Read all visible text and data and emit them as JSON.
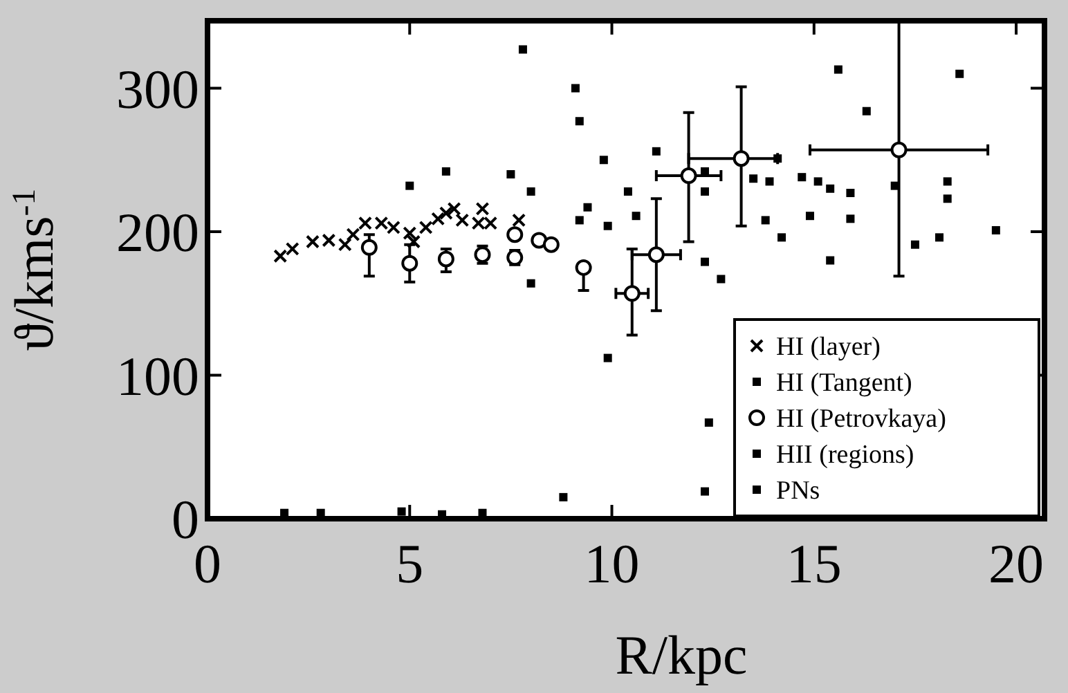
{
  "chart_data": {
    "type": "scatter",
    "xlabel": "R/kpc",
    "ylabel": "ϑ/kms$^{-1}$",
    "xlim": [
      0,
      20.7
    ],
    "ylim": [
      0,
      347
    ],
    "xticks": [
      0,
      5,
      10,
      15,
      20
    ],
    "yticks": [
      0,
      100,
      200,
      300
    ],
    "grid": false,
    "legend": "bottom right",
    "series": [
      {
        "name": "HI (layer)",
        "color": "#000000",
        "marker": "cross",
        "x": [
          1.8,
          2.1,
          2.6,
          3.0,
          3.4,
          3.6,
          3.9,
          4.3,
          4.6,
          5.0,
          5.1,
          5.4,
          5.7,
          5.9,
          6.1,
          6.3,
          6.7,
          6.8,
          7.0,
          7.7
        ],
        "values": [
          183,
          188,
          193,
          194,
          191,
          198,
          206,
          206,
          203,
          199,
          193,
          203,
          209,
          213,
          216,
          208,
          206,
          216,
          206,
          208
        ]
      },
      {
        "name": "HI (Tangent)",
        "color": "#000000",
        "marker": "square",
        "x": [
          7.8,
          9.1,
          9.2,
          9.8,
          5.9,
          5.0,
          7.5,
          8.0,
          8.0,
          9.9,
          15.6,
          16.3,
          18.6,
          11.1,
          13.8,
          14.9,
          15.9,
          14.2,
          12.7,
          12.3,
          18.1,
          12.4,
          12.3,
          1.9,
          2.8,
          4.8,
          5.8,
          6.8,
          8.8
        ],
        "values": [
          327,
          300,
          277,
          250,
          242,
          232,
          240,
          228,
          164,
          112,
          313,
          284,
          310,
          256,
          208,
          211,
          209,
          196,
          167,
          179,
          196,
          67,
          19,
          4,
          4,
          5,
          3,
          4,
          15
        ]
      },
      {
        "name": "HI (Petrovkaya)",
        "color": "#000000",
        "marker": "circle",
        "x": [
          4.0,
          5.0,
          5.9,
          6.8,
          7.6,
          7.6,
          8.2,
          8.5,
          9.3,
          10.5,
          11.1,
          11.9,
          13.2,
          17.1
        ],
        "values": [
          189,
          178,
          181,
          184,
          182,
          198,
          194,
          191,
          175,
          157,
          184,
          239,
          251,
          257
        ],
        "errors": [
          [
            169,
            198
          ],
          13,
          [
            172,
            188
          ],
          6,
          5,
          null,
          null,
          null,
          [
            159,
            175
          ],
          [
            128,
            188
          ],
          [
            145,
            223
          ],
          [
            193,
            283
          ],
          [
            204,
            301
          ],
          [
            169,
            347
          ]
        ],
        "xerrors": [
          null,
          null,
          null,
          null,
          null,
          null,
          null,
          null,
          null,
          0.4,
          0.6,
          0.8,
          [
            11.9,
            14.1
          ],
          2.2
        ]
      },
      {
        "name": "HII (regions)",
        "color": "#000000",
        "marker": "square",
        "x": [
          10.4,
          9.4,
          9.9,
          10.6,
          9.2,
          12.3,
          14.1
        ],
        "values": [
          228,
          217,
          204,
          211,
          208,
          228,
          251
        ]
      },
      {
        "name": "PNs",
        "color": "#000000",
        "marker": "square",
        "x": [
          13.5,
          13.9,
          14.7,
          15.1,
          15.4,
          15.9,
          17.0,
          18.3,
          18.3,
          19.5,
          17.5,
          15.4,
          12.3
        ],
        "values": [
          237,
          235,
          238,
          235,
          230,
          227,
          232,
          235,
          223,
          201,
          191,
          180,
          242
        ]
      }
    ]
  }
}
